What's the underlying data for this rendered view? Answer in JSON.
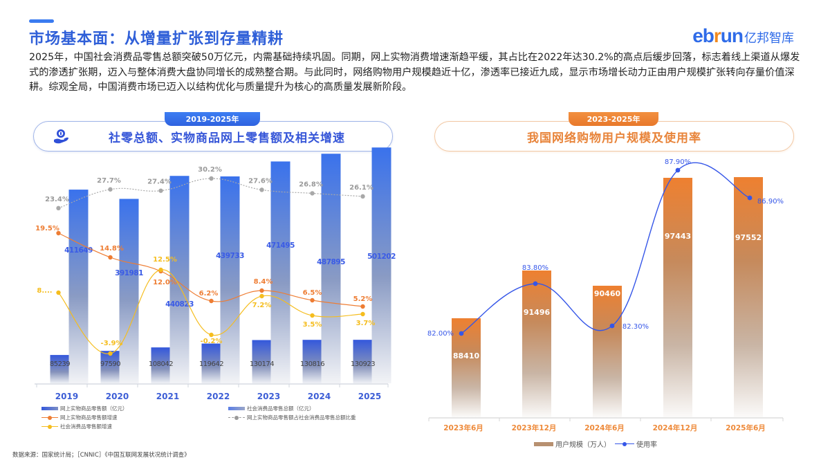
{
  "header": {
    "title": "市场基本面：从增量扩张到存量精耕",
    "logo_en_a": "eb",
    "logo_en_r": "r",
    "logo_en_b": "un",
    "logo_cn": "亿邦智库"
  },
  "intro": "2025年，中国社会消费品零售总额突破50万亿元，内需基础持续巩固。同期，网上实物消费增速渐趋平缓，其占比在2022年达30.2%的高点后缓步回落，标志着线上渠道从爆发式的渗透扩张期，迈入与整体消费大盘协同增长的成熟整合期。与此同时，网络购物用户规模趋近十亿，渗透率已接近九成，显示市场增长动力正由用户规模扩张转向存量价值深耕。综观全局，中国消费市场已迈入以结构优化与质量提升为核心的高质量发展新阶段。",
  "left_panel": {
    "tab": "2019-2025年",
    "title": "社零总额、实物商品网上零售额及相关增速",
    "icon": "hand-coin-icon",
    "legend": [
      "网上实物商品零售额（亿元）",
      "社会消费品零售总额（亿元）",
      "网上实物商品零售额增速",
      "网上实物商品零售额占社会消费品零售总额比重",
      "社会消费品零售额增速"
    ]
  },
  "right_panel": {
    "tab": "2023-2025年",
    "title": "我国网络购物用户规模及使用率",
    "legend": [
      "用户规模（万人）",
      "使用率"
    ]
  },
  "source": "数据来源：国家统计局；［CNNIC］《中国互联网发展状况统计调查》",
  "colors": {
    "brand_blue": "#2f5fd8",
    "brand_orange": "#e8843a",
    "online_growth": "#ee7d33",
    "retail_growth": "#f5bd1e",
    "share_line": "#9a9a9a",
    "usage_line": "#3556e8"
  },
  "chart_data": [
    {
      "type": "bar",
      "title": "社零总额、实物商品网上零售额及相关增速",
      "subtitle": "2019-2025年",
      "categories": [
        "2019",
        "2020",
        "2021",
        "2022",
        "2023",
        "2024",
        "2025"
      ],
      "series": [
        {
          "name": "网上实物商品零售额（亿元）",
          "type": "bar",
          "values": [
            85239,
            97590,
            108042,
            119642,
            130174,
            130816,
            130923
          ],
          "labels": [
            "85239",
            "97590",
            "108042",
            "119642",
            "130174",
            "130816",
            "130923"
          ]
        },
        {
          "name": "社会消费品零售总额（亿元）",
          "type": "bar",
          "values": [
            411649,
            391981,
            440823,
            439733,
            471495,
            487895,
            501202
          ],
          "labels": [
            "411649",
            "391981",
            "440823",
            "439733",
            "471495",
            "487895",
            "501202"
          ]
        },
        {
          "name": "网上实物商品零售额增速",
          "type": "line",
          "values": [
            19.5,
            14.8,
            12.0,
            6.2,
            8.4,
            6.5,
            5.2
          ],
          "labels": [
            "19.5%",
            "14.8%",
            "12.0%",
            "6.2%",
            "8.4%",
            "6.5%",
            "5.2%"
          ]
        },
        {
          "name": "网上实物商品零售额占社会消费品零售总额比重",
          "type": "line",
          "style": "dashed",
          "values": [
            23.4,
            27.7,
            27.4,
            30.2,
            27.6,
            26.8,
            26.1
          ],
          "labels": [
            "23.4%",
            "27.7%",
            "27.4%",
            "30.2%",
            "27.6%",
            "26.8%",
            "26.1%"
          ]
        },
        {
          "name": "社会消费品零售额增速",
          "type": "line",
          "values": [
            8.0,
            -3.9,
            12.5,
            -0.2,
            7.2,
            3.5,
            3.7
          ],
          "labels": [
            "8....",
            "-3.9%",
            "12.5%",
            "-0.2%",
            "7.2%",
            "3.5%",
            "3.7%"
          ]
        }
      ],
      "xlabel": "",
      "ylabel": "",
      "grid": false,
      "legend_position": "bottom"
    },
    {
      "type": "bar",
      "title": "我国网络购物用户规模及使用率",
      "subtitle": "2023-2025年",
      "categories": [
        "2023年6月",
        "2023年12月",
        "2024年6月",
        "2024年12月",
        "2025年6月"
      ],
      "series": [
        {
          "name": "用户规模（万人）",
          "type": "bar",
          "values": [
            88410,
            91496,
            90460,
            97443,
            97552
          ],
          "labels": [
            "88410",
            "91496",
            "90460",
            "97443",
            "97552"
          ]
        },
        {
          "name": "使用率",
          "type": "line",
          "values": [
            82.0,
            83.8,
            82.3,
            87.9,
            86.9
          ],
          "labels": [
            "82.00%",
            "83.80%",
            "82.30%",
            "87.90%",
            "86.90%"
          ]
        }
      ],
      "xlabel": "",
      "ylabel": "",
      "grid": false,
      "legend_position": "bottom"
    }
  ]
}
